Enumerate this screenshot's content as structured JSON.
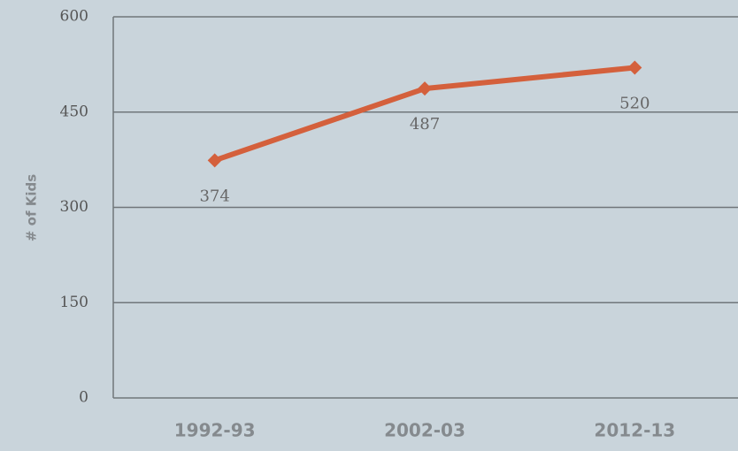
{
  "chart_data": {
    "type": "line",
    "y_label": "# of Kids",
    "categories": [
      "1992-93",
      "2002-03",
      "2012-13"
    ],
    "series": [
      {
        "name": null,
        "color": "#d4603c",
        "values": [
          374,
          487,
          520
        ]
      }
    ],
    "ylim": [
      0,
      600
    ],
    "yticks": [
      0,
      150,
      300,
      450,
      600
    ],
    "grid": true,
    "data_labels": true
  }
}
